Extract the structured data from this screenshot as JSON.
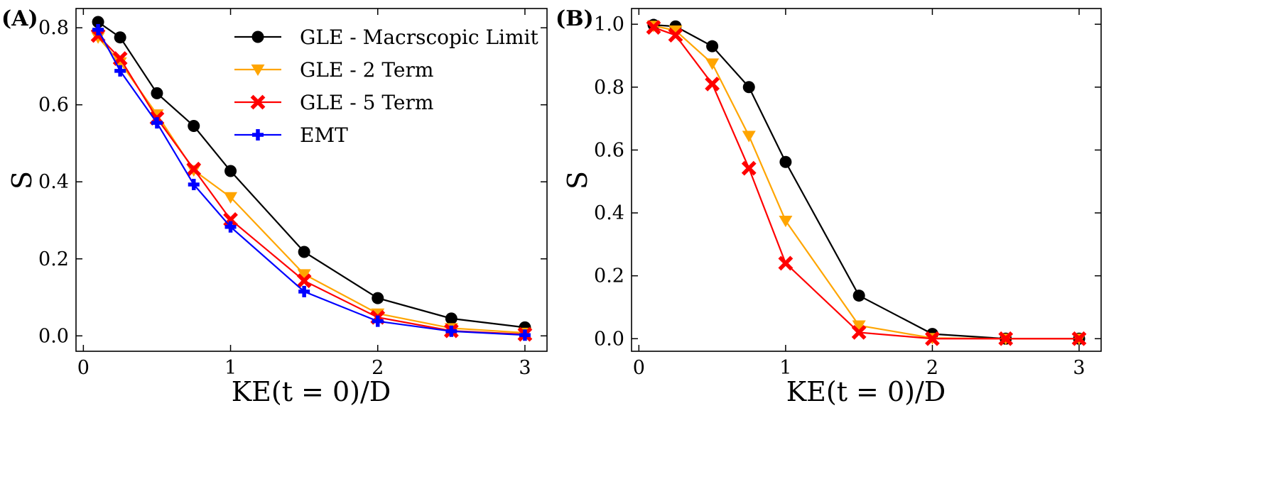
{
  "colors": {
    "GLE - Macrscopic Limit": "#000000",
    "GLE - 2 Term": "#FFA500",
    "GLE - 5 Term": "#FF0000",
    "EMT": "#0000FF"
  },
  "chart_data": [
    {
      "type": "line",
      "panel_label": "(A)",
      "xlabel": "KE(t = 0)/D",
      "ylabel": "S",
      "xlim": [
        -0.05,
        3.15
      ],
      "ylim": [
        -0.04,
        0.85
      ],
      "xticks": [
        0,
        1,
        2,
        3
      ],
      "yticks": [
        0.0,
        0.2,
        0.4,
        0.6,
        0.8
      ],
      "grid": false,
      "legend_position": "top-right",
      "series": [
        {
          "name": "GLE - Macrscopic Limit",
          "marker": "circle",
          "x": [
            0.1,
            0.25,
            0.5,
            0.75,
            1.0,
            1.5,
            2.0,
            2.5,
            3.0
          ],
          "y": [
            0.815,
            0.775,
            0.63,
            0.545,
            0.428,
            0.218,
            0.098,
            0.045,
            0.022
          ]
        },
        {
          "name": "GLE - 2 Term",
          "marker": "triangle-down",
          "x": [
            0.1,
            0.25,
            0.5,
            0.75,
            1.0,
            1.5,
            2.0,
            2.5,
            3.0
          ],
          "y": [
            0.775,
            0.71,
            0.575,
            0.43,
            0.36,
            0.16,
            0.058,
            0.02,
            0.008
          ]
        },
        {
          "name": "GLE - 5 Term",
          "marker": "x",
          "x": [
            0.1,
            0.25,
            0.5,
            0.75,
            1.0,
            1.5,
            2.0,
            2.5,
            3.0
          ],
          "y": [
            0.78,
            0.72,
            0.565,
            0.433,
            0.302,
            0.143,
            0.048,
            0.013,
            0.004
          ]
        },
        {
          "name": "EMT",
          "marker": "plus",
          "x": [
            0.1,
            0.25,
            0.5,
            0.75,
            1.0,
            1.5,
            2.0,
            2.5,
            3.0
          ],
          "y": [
            0.795,
            0.688,
            0.553,
            0.393,
            0.283,
            0.115,
            0.038,
            0.012,
            0.002
          ]
        }
      ]
    },
    {
      "type": "line",
      "panel_label": "(B)",
      "xlabel": "KE(t = 0)/D",
      "ylabel": "S",
      "xlim": [
        -0.05,
        3.15
      ],
      "ylim": [
        -0.04,
        1.05
      ],
      "xticks": [
        0,
        1,
        2,
        3
      ],
      "yticks": [
        0.0,
        0.2,
        0.4,
        0.6,
        0.8,
        1.0
      ],
      "grid": false,
      "series": [
        {
          "name": "GLE - Macrscopic Limit",
          "marker": "circle",
          "x": [
            0.1,
            0.25,
            0.5,
            0.75,
            1.0,
            1.5,
            2.0,
            2.5,
            3.0
          ],
          "y": [
            0.998,
            0.993,
            0.93,
            0.8,
            0.562,
            0.137,
            0.015,
            0.0,
            0.0
          ]
        },
        {
          "name": "GLE - 2 Term",
          "marker": "triangle-down",
          "x": [
            0.1,
            0.25,
            0.5,
            0.75,
            1.0,
            1.5,
            2.0,
            2.5,
            3.0
          ],
          "y": [
            0.995,
            0.98,
            0.875,
            0.645,
            0.375,
            0.042,
            0.002,
            0.0,
            0.0
          ]
        },
        {
          "name": "GLE - 5 Term",
          "marker": "x",
          "x": [
            0.1,
            0.25,
            0.5,
            0.75,
            1.0,
            1.5,
            2.0,
            2.5,
            3.0
          ],
          "y": [
            0.99,
            0.965,
            0.81,
            0.542,
            0.24,
            0.02,
            0.0,
            0.0,
            0.0
          ]
        }
      ]
    }
  ]
}
